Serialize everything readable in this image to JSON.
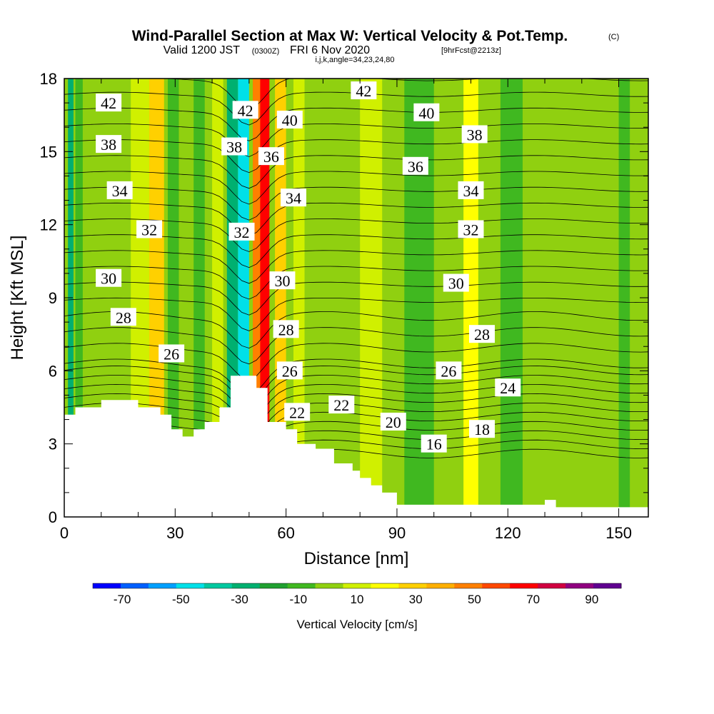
{
  "title": {
    "main": "Wind-Parallel Section at Max W: Vertical Velocity & Pot.Temp.",
    "copyright": "(C)",
    "valid_prefix": "Valid 1200 JST",
    "valid_utc": "(0300Z)",
    "valid_date": "FRI 6 Nov 2020",
    "forecast": "[9hrFcst@2213z]",
    "indices": "i,j,k,angle=34,23,24,80"
  },
  "chart_data": {
    "type": "heatmap",
    "xlabel": "Distance [nm]",
    "ylabel": "Height [Kft MSL]",
    "xlim": [
      0,
      158
    ],
    "ylim": [
      0,
      18
    ],
    "x_ticks": [
      0,
      30,
      60,
      90,
      120,
      150
    ],
    "y_ticks": [
      0,
      3,
      6,
      9,
      12,
      15,
      18
    ],
    "grid": false,
    "terrain_profile": [
      [
        0,
        4.2
      ],
      [
        3,
        4.2
      ],
      [
        3,
        4.5
      ],
      [
        10,
        4.5
      ],
      [
        10,
        4.8
      ],
      [
        20,
        4.8
      ],
      [
        20,
        4.5
      ],
      [
        26,
        4.5
      ],
      [
        26,
        4.2
      ],
      [
        29,
        4.2
      ],
      [
        29,
        3.6
      ],
      [
        32,
        3.6
      ],
      [
        32,
        3.3
      ],
      [
        35,
        3.3
      ],
      [
        35,
        3.6
      ],
      [
        38,
        3.6
      ],
      [
        38,
        3.9
      ],
      [
        42,
        3.9
      ],
      [
        42,
        4.5
      ],
      [
        45,
        4.5
      ],
      [
        45,
        5.8
      ],
      [
        52,
        5.8
      ],
      [
        52,
        5.3
      ],
      [
        55,
        5.3
      ],
      [
        55,
        3.9
      ],
      [
        60,
        3.9
      ],
      [
        60,
        3.6
      ],
      [
        63,
        3.6
      ],
      [
        63,
        3.0
      ],
      [
        68,
        3.0
      ],
      [
        68,
        2.8
      ],
      [
        73,
        2.8
      ],
      [
        73,
        2.2
      ],
      [
        78,
        2.2
      ],
      [
        78,
        1.9
      ],
      [
        80,
        1.9
      ],
      [
        80,
        1.6
      ],
      [
        83,
        1.6
      ],
      [
        83,
        1.3
      ],
      [
        86,
        1.3
      ],
      [
        86,
        1.0
      ],
      [
        90,
        1.0
      ],
      [
        90,
        0.5
      ],
      [
        130,
        0.5
      ],
      [
        130,
        0.7
      ],
      [
        133,
        0.7
      ],
      [
        133,
        0.4
      ],
      [
        158,
        0.4
      ]
    ],
    "vertical_velocity_bands": [
      {
        "x": 1,
        "w": 1.5,
        "value": -30
      },
      {
        "x": 3,
        "w": 2,
        "value": -10
      },
      {
        "x": 10,
        "w": 6,
        "value": 0
      },
      {
        "x": 18,
        "w": 5,
        "value": 10
      },
      {
        "x": 23,
        "w": 4,
        "value": 30
      },
      {
        "x": 28,
        "w": 3,
        "value": -10
      },
      {
        "x": 35,
        "w": 3,
        "value": -10
      },
      {
        "x": 40,
        "w": 3,
        "value": 10
      },
      {
        "x": 44,
        "w": 3,
        "value": -30
      },
      {
        "x": 47,
        "w": 3,
        "value": -50
      },
      {
        "x": 51,
        "w": 3,
        "value": 50
      },
      {
        "x": 53,
        "w": 2.5,
        "value": 70
      },
      {
        "x": 57,
        "w": 3,
        "value": 30
      },
      {
        "x": 62,
        "w": 3,
        "value": 10
      },
      {
        "x": 80,
        "w": 6,
        "value": 10
      },
      {
        "x": 92,
        "w": 8,
        "value": -10
      },
      {
        "x": 108,
        "w": 4,
        "value": 20
      },
      {
        "x": 118,
        "w": 6,
        "value": -10
      },
      {
        "x": 140,
        "w": 4,
        "value": 0
      },
      {
        "x": 150,
        "w": 3,
        "value": -10
      }
    ],
    "theta_contour_labels": [
      {
        "x": 12,
        "y": 17.0,
        "text": "42"
      },
      {
        "x": 49,
        "y": 16.7,
        "text": "42"
      },
      {
        "x": 81,
        "y": 17.5,
        "text": "42"
      },
      {
        "x": 61,
        "y": 16.3,
        "text": "40"
      },
      {
        "x": 98,
        "y": 16.6,
        "text": "40"
      },
      {
        "x": 12,
        "y": 15.3,
        "text": "38"
      },
      {
        "x": 46,
        "y": 15.2,
        "text": "38"
      },
      {
        "x": 111,
        "y": 15.7,
        "text": "38"
      },
      {
        "x": 56,
        "y": 14.8,
        "text": "36"
      },
      {
        "x": 95,
        "y": 14.4,
        "text": "36"
      },
      {
        "x": 15,
        "y": 13.4,
        "text": "34"
      },
      {
        "x": 62,
        "y": 13.1,
        "text": "34"
      },
      {
        "x": 110,
        "y": 13.4,
        "text": "34"
      },
      {
        "x": 23,
        "y": 11.8,
        "text": "32"
      },
      {
        "x": 48,
        "y": 11.7,
        "text": "32"
      },
      {
        "x": 110,
        "y": 11.8,
        "text": "32"
      },
      {
        "x": 12,
        "y": 9.8,
        "text": "30"
      },
      {
        "x": 59,
        "y": 9.7,
        "text": "30"
      },
      {
        "x": 106,
        "y": 9.6,
        "text": "30"
      },
      {
        "x": 16,
        "y": 8.2,
        "text": "28"
      },
      {
        "x": 60,
        "y": 7.7,
        "text": "28"
      },
      {
        "x": 113,
        "y": 7.5,
        "text": "28"
      },
      {
        "x": 29,
        "y": 6.7,
        "text": "26"
      },
      {
        "x": 61,
        "y": 6.0,
        "text": "26"
      },
      {
        "x": 104,
        "y": 6.0,
        "text": "26"
      },
      {
        "x": 120,
        "y": 5.3,
        "text": "24"
      },
      {
        "x": 63,
        "y": 4.3,
        "text": "22"
      },
      {
        "x": 75,
        "y": 4.6,
        "text": "22"
      },
      {
        "x": 89,
        "y": 3.9,
        "text": "20"
      },
      {
        "x": 113,
        "y": 3.6,
        "text": "18"
      },
      {
        "x": 100,
        "y": 3.0,
        "text": "16"
      }
    ]
  },
  "colorbar": {
    "label": "Vertical Velocity [cm/s]",
    "tick_labels": [
      "-70",
      "-50",
      "-30",
      "-10",
      "10",
      "30",
      "50",
      "70",
      "90"
    ],
    "bounds": [
      -80,
      100
    ],
    "colors": [
      "#0000ff",
      "#0060ff",
      "#00a0ff",
      "#00e0e8",
      "#00c8a0",
      "#00b070",
      "#20a030",
      "#40b820",
      "#90d010",
      "#d0f000",
      "#ffff00",
      "#ffd000",
      "#ffb000",
      "#ff8000",
      "#ff4800",
      "#ff0000",
      "#d00040",
      "#900080",
      "#600090"
    ]
  }
}
